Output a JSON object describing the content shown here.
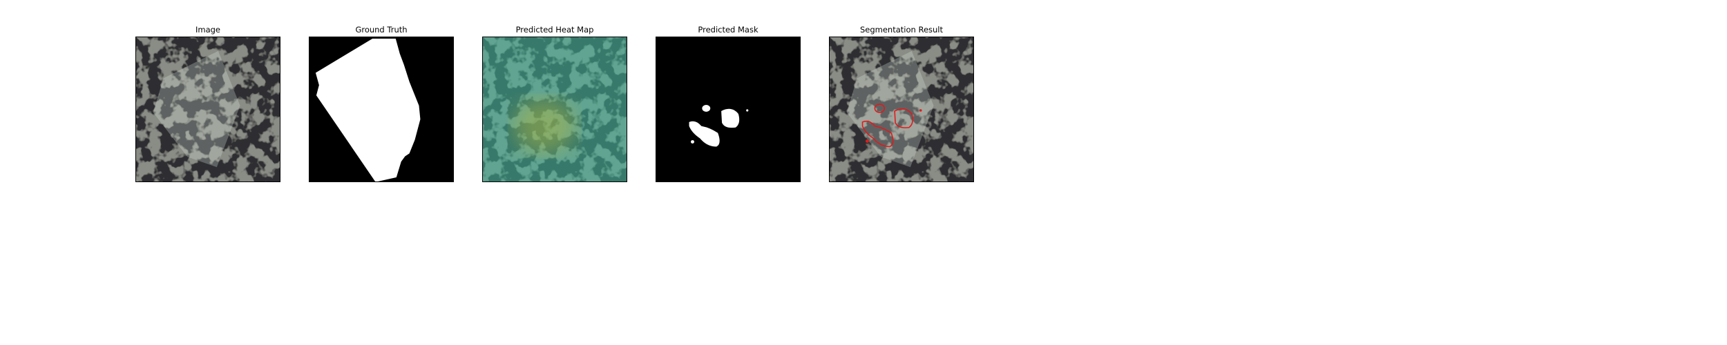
{
  "figure": {
    "panels": [
      {
        "title": "Image"
      },
      {
        "title": "Ground Truth"
      },
      {
        "title": "Predicted Heat Map"
      },
      {
        "title": "Predicted Mask"
      },
      {
        "title": "Segmentation Result"
      }
    ]
  },
  "colors": {
    "background": "#ffffff",
    "texture_light": "#8a8c86",
    "texture_dark": "#2e2f30",
    "mask_foreground": "#ffffff",
    "mask_background": "#000000",
    "heat_overlay": "#3fb89a",
    "heat_hot": "#b7b83a",
    "contour": "#e01b1b"
  }
}
